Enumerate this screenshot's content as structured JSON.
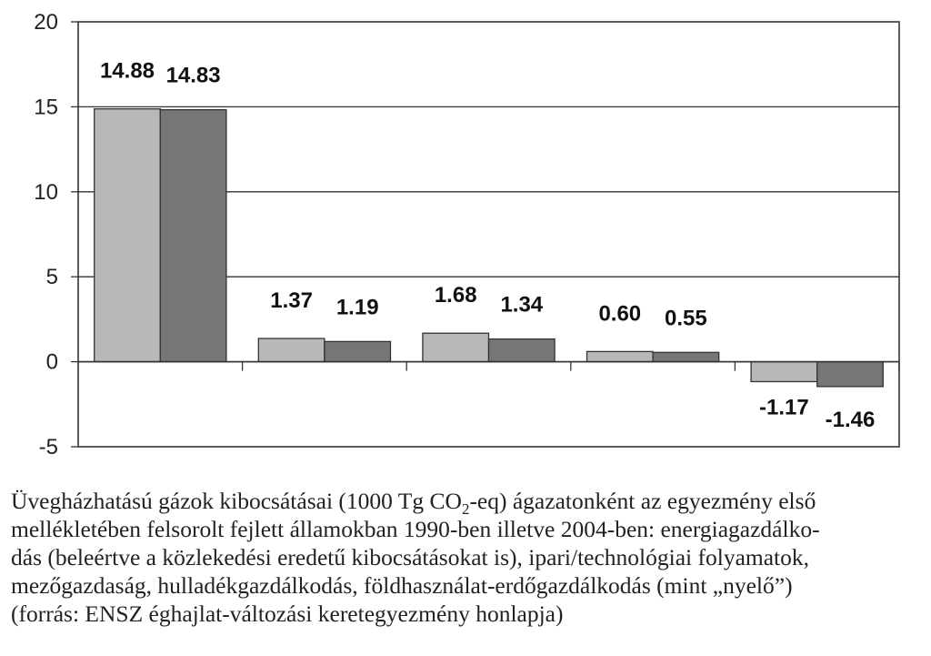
{
  "chart_data": {
    "type": "bar",
    "categories": [
      "energiagazdálkodás",
      "ipari/technológiai folyamatok",
      "mezőgazdaság",
      "hulladékgazdálkodás",
      "földhasználat-erdőgazdálkodás"
    ],
    "series": [
      {
        "values": [
          14.88,
          1.37,
          1.68,
          0.6,
          -1.17
        ]
      },
      {
        "values": [
          14.83,
          1.19,
          1.34,
          0.55,
          -1.46
        ]
      }
    ],
    "value_labels": [
      [
        "14.88",
        "1.37",
        "1.68",
        "0.60",
        "-1.17"
      ],
      [
        "14.83",
        "1.19",
        "1.34",
        "0.55",
        "-1.46"
      ]
    ],
    "ylim": [
      -5,
      20
    ],
    "yticks": [
      "20",
      "15",
      "10",
      "5",
      "0",
      "-5"
    ],
    "ytick_values": [
      20,
      15,
      10,
      5,
      0,
      -5
    ],
    "grid": true,
    "legend": "none",
    "colors": [
      "#b8b8b8",
      "#767676"
    ]
  },
  "caption": {
    "line1_pre": "Üvegházhatású gázok kibocsátásai (1000 Tg CO",
    "line1_sub": "2",
    "line1_post": "-eq) ágazatonként az egyezmény első",
    "line2": "mellékletében felsorolt fejlett államokban 1990-ben illetve 2004-ben: energiagazdálko-",
    "line3": "dás (beleértve a közlekedési eredetű kibocsátásokat is), ipari/technológiai folyamatok,",
    "line4": "mezőgazdaság, hulladékgazdálkodás, földhasználat-erdőgazdálkodás (mint „nyelő”)",
    "line5": "(forrás: ENSZ éghajlat-változási keretegyezmény honlapja)"
  }
}
